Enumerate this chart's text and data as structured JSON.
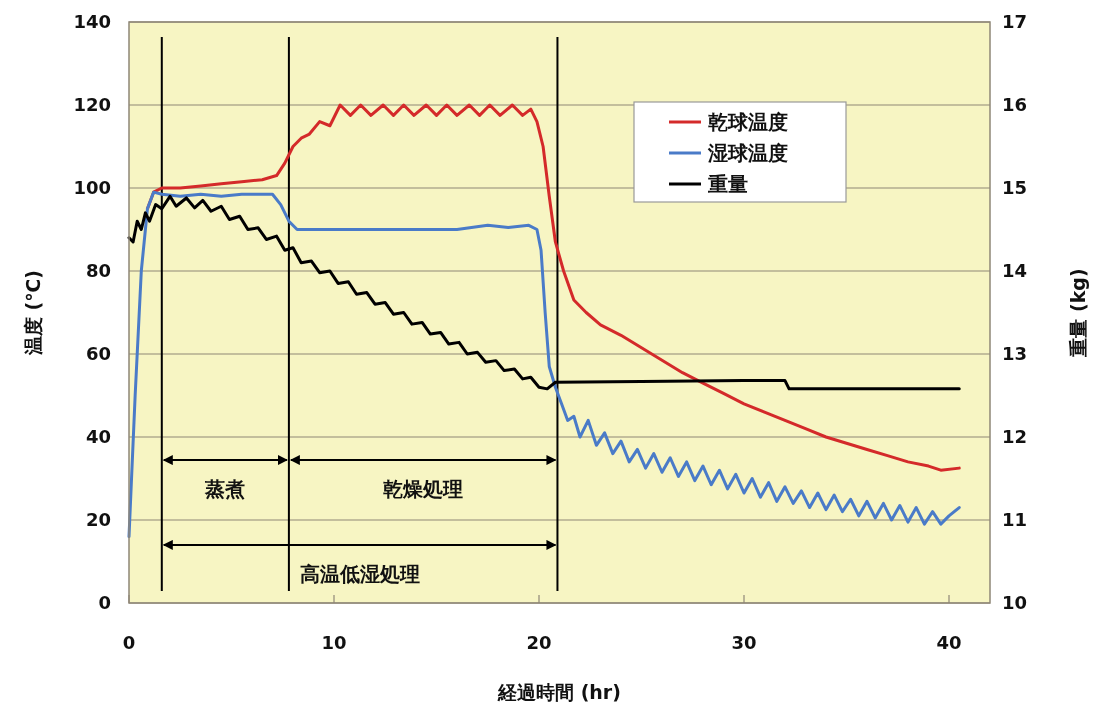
{
  "chart_data": {
    "type": "line",
    "xlabel": "経過時間 (hr)",
    "ylabel": "温度 (℃)",
    "y2label": "重量 (kg)",
    "xlim": [
      0,
      42
    ],
    "xticks": [
      0,
      10,
      20,
      30,
      40
    ],
    "ylim": [
      0,
      140
    ],
    "yticks": [
      0,
      20,
      40,
      60,
      80,
      100,
      120,
      140
    ],
    "y2lim": [
      10,
      17
    ],
    "y2ticks": [
      10,
      11,
      12,
      13,
      14,
      15,
      16,
      17
    ],
    "grid": "y",
    "legend": "top right",
    "marker": "none",
    "line_style": "solid",
    "series": [
      {
        "name": "乾球温度",
        "color": "#d42a2a",
        "x": [
          0.9,
          1.2,
          1.6,
          2.5,
          3.5,
          4.5,
          5.5,
          6.5,
          7.2,
          7.6,
          8.0,
          8.4,
          8.8,
          9.3,
          9.8,
          10.3,
          10.8,
          11.3,
          11.8,
          12.4,
          12.9,
          13.4,
          13.9,
          14.5,
          15.0,
          15.5,
          16.0,
          16.6,
          17.1,
          17.6,
          18.1,
          18.7,
          19.2,
          19.6,
          19.9,
          20.2,
          20.5,
          20.8,
          21.2,
          21.7,
          22.3,
          23,
          24,
          25,
          26,
          27,
          28,
          29,
          30,
          31,
          32,
          33,
          34,
          35,
          36,
          37,
          38,
          39,
          39.6,
          40.5
        ],
        "values": [
          95,
          99,
          100,
          100,
          100.5,
          101,
          101.5,
          102,
          103,
          106,
          110,
          112,
          113,
          116,
          115,
          120,
          117.5,
          120,
          117.5,
          120,
          117.5,
          120,
          117.5,
          120,
          117.5,
          120,
          117.5,
          120,
          117.5,
          120,
          117.5,
          120,
          117.5,
          119,
          116,
          110,
          98,
          87,
          80,
          73,
          70,
          67,
          64.5,
          61.5,
          58.5,
          55.5,
          53,
          50.5,
          48,
          46,
          44,
          42,
          40,
          38.5,
          37,
          35.5,
          34,
          33,
          32,
          32.5
        ]
      },
      {
        "name": "湿球温度",
        "color": "#4a7bc8",
        "x": [
          0,
          0.3,
          0.6,
          0.9,
          1.2,
          1.6,
          2.5,
          3.5,
          4.5,
          5.5,
          6.5,
          7.0,
          7.4,
          7.8,
          8.2,
          10,
          12,
          14,
          16,
          17.5,
          18.5,
          19.5,
          19.9,
          20.1,
          20.3,
          20.5,
          20.8,
          21.1,
          21.4,
          21.7,
          22.0,
          22.4,
          22.8,
          23.2,
          23.6,
          24.0,
          24.4,
          24.8,
          25.2,
          25.6,
          26.0,
          26.4,
          26.8,
          27.2,
          27.6,
          28.0,
          28.4,
          28.8,
          29.2,
          29.6,
          30.0,
          30.4,
          30.8,
          31.2,
          31.6,
          32.0,
          32.4,
          32.8,
          33.2,
          33.6,
          34.0,
          34.4,
          34.8,
          35.2,
          35.6,
          36.0,
          36.4,
          36.8,
          37.2,
          37.6,
          38.0,
          38.4,
          38.8,
          39.2,
          39.6,
          40.0,
          40.5
        ],
        "values": [
          16,
          50,
          80,
          95,
          99,
          98.5,
          98,
          98.5,
          98,
          98.5,
          98.5,
          98.5,
          96,
          92,
          90,
          90,
          90,
          90,
          90,
          91,
          90.5,
          91,
          90,
          85,
          70,
          57,
          52,
          48,
          44,
          45,
          40,
          44,
          38,
          41,
          36,
          39,
          34,
          37,
          32.5,
          36,
          31.5,
          35,
          30.5,
          34,
          29.5,
          33,
          28.5,
          32,
          27.5,
          31,
          26.5,
          30,
          25.5,
          29,
          24.5,
          28,
          24,
          27,
          23,
          26.5,
          22.5,
          26,
          22,
          25,
          21,
          24.5,
          20.5,
          24,
          20,
          23.5,
          19.5,
          23,
          19,
          22,
          19,
          21,
          23
        ]
      },
      {
        "name": "重量",
        "color": "#000000",
        "axis": "y2",
        "x": [
          0,
          0.2,
          0.4,
          0.6,
          0.8,
          1.0,
          1.3,
          1.6,
          2.0,
          2.3,
          2.8,
          3.2,
          3.6,
          4.0,
          4.5,
          4.9,
          5.4,
          5.8,
          6.3,
          6.7,
          7.2,
          7.6,
          8.0,
          8.4,
          8.9,
          9.3,
          9.8,
          10.2,
          10.7,
          11.1,
          11.6,
          12.0,
          12.5,
          12.9,
          13.4,
          13.8,
          14.3,
          14.7,
          15.2,
          15.6,
          16.1,
          16.5,
          17.0,
          17.4,
          17.9,
          18.3,
          18.8,
          19.2,
          19.6,
          20.0,
          20.4,
          20.8,
          25,
          30,
          32.0,
          32.2,
          36,
          40.5
        ],
        "values": [
          14.4,
          14.35,
          14.6,
          14.5,
          14.7,
          14.6,
          14.8,
          14.75,
          14.9,
          14.78,
          14.88,
          14.76,
          14.85,
          14.72,
          14.78,
          14.62,
          14.66,
          14.5,
          14.52,
          14.38,
          14.42,
          14.25,
          14.28,
          14.1,
          14.12,
          13.98,
          14.0,
          13.85,
          13.87,
          13.72,
          13.74,
          13.6,
          13.62,
          13.48,
          13.5,
          13.36,
          13.38,
          13.24,
          13.26,
          13.12,
          13.14,
          13.0,
          13.02,
          12.9,
          12.92,
          12.8,
          12.82,
          12.7,
          12.72,
          12.6,
          12.58,
          12.66,
          12.67,
          12.68,
          12.68,
          12.58,
          12.58,
          12.58
        ]
      }
    ],
    "ref_lines": [
      {
        "axis": "x",
        "value": 1.6,
        "color": "#000000"
      },
      {
        "axis": "x",
        "value": 7.8,
        "color": "#000000"
      },
      {
        "axis": "x",
        "value": 20.9,
        "color": "#000000"
      }
    ],
    "annotations": [
      "蒸煮",
      "乾燥処理",
      "高温低湿処理"
    ]
  }
}
